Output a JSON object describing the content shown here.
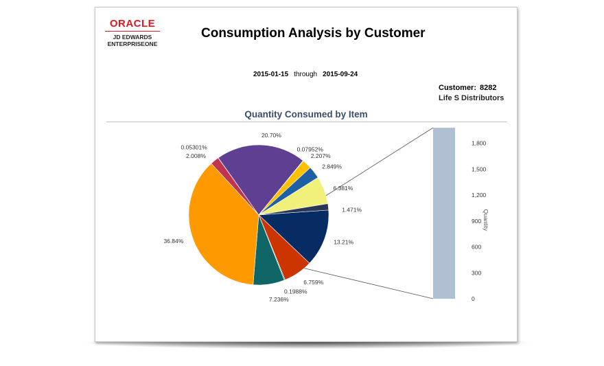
{
  "logo": {
    "brand": "ORACLE",
    "line1": "JD EDWARDS",
    "line2": "ENTERPRISEONE"
  },
  "report": {
    "title": "Consumption Analysis by Customer",
    "start_date": "2015-01-15",
    "through_label": "through",
    "end_date": "2015-09-24",
    "customer_label": "Customer:",
    "customer_number": "8282",
    "customer_name": "Life S Distributors"
  },
  "chart_data": {
    "type": "pie",
    "title": "Quantity Consumed by Item",
    "start_angle_deg": -4,
    "slices": [
      {
        "label": "13.21%",
        "value": 13.21,
        "color": "#062c63"
      },
      {
        "label": "6.759%",
        "value": 6.759,
        "color": "#cc3500"
      },
      {
        "label": "0.1988%",
        "value": 0.1988,
        "color": "#0a7a7a"
      },
      {
        "label": "7.236%",
        "value": 7.236,
        "color": "#106666"
      },
      {
        "label": "36.84%",
        "value": 36.84,
        "color": "#ff9900"
      },
      {
        "label": "2.008%",
        "value": 2.008,
        "color": "#c2334f"
      },
      {
        "label": "0.05301%",
        "value": 0.05301,
        "color": "#7a3b7a"
      },
      {
        "label": "20.70%",
        "value": 20.7,
        "color": "#5f3f91"
      },
      {
        "label": "0.07952%",
        "value": 0.07952,
        "color": "#e06060"
      },
      {
        "label": "2.207%",
        "value": 2.207,
        "color": "#ffc000"
      },
      {
        "label": "2.849%",
        "value": 2.849,
        "color": "#1f5fa3"
      },
      {
        "label": "6.381%",
        "value": 6.381,
        "color": "#f0f07a"
      },
      {
        "label": "1.471%",
        "value": 1.471,
        "color": "#2a3656"
      }
    ],
    "detail_bar": {
      "axis_title": "Quantity",
      "ylim": [
        0,
        1980
      ],
      "ticks": [
        "0",
        "300",
        "600",
        "900",
        "1,200",
        "1,500",
        "1,800"
      ],
      "bar_value": 1980,
      "color": "#b0bfd1"
    }
  }
}
